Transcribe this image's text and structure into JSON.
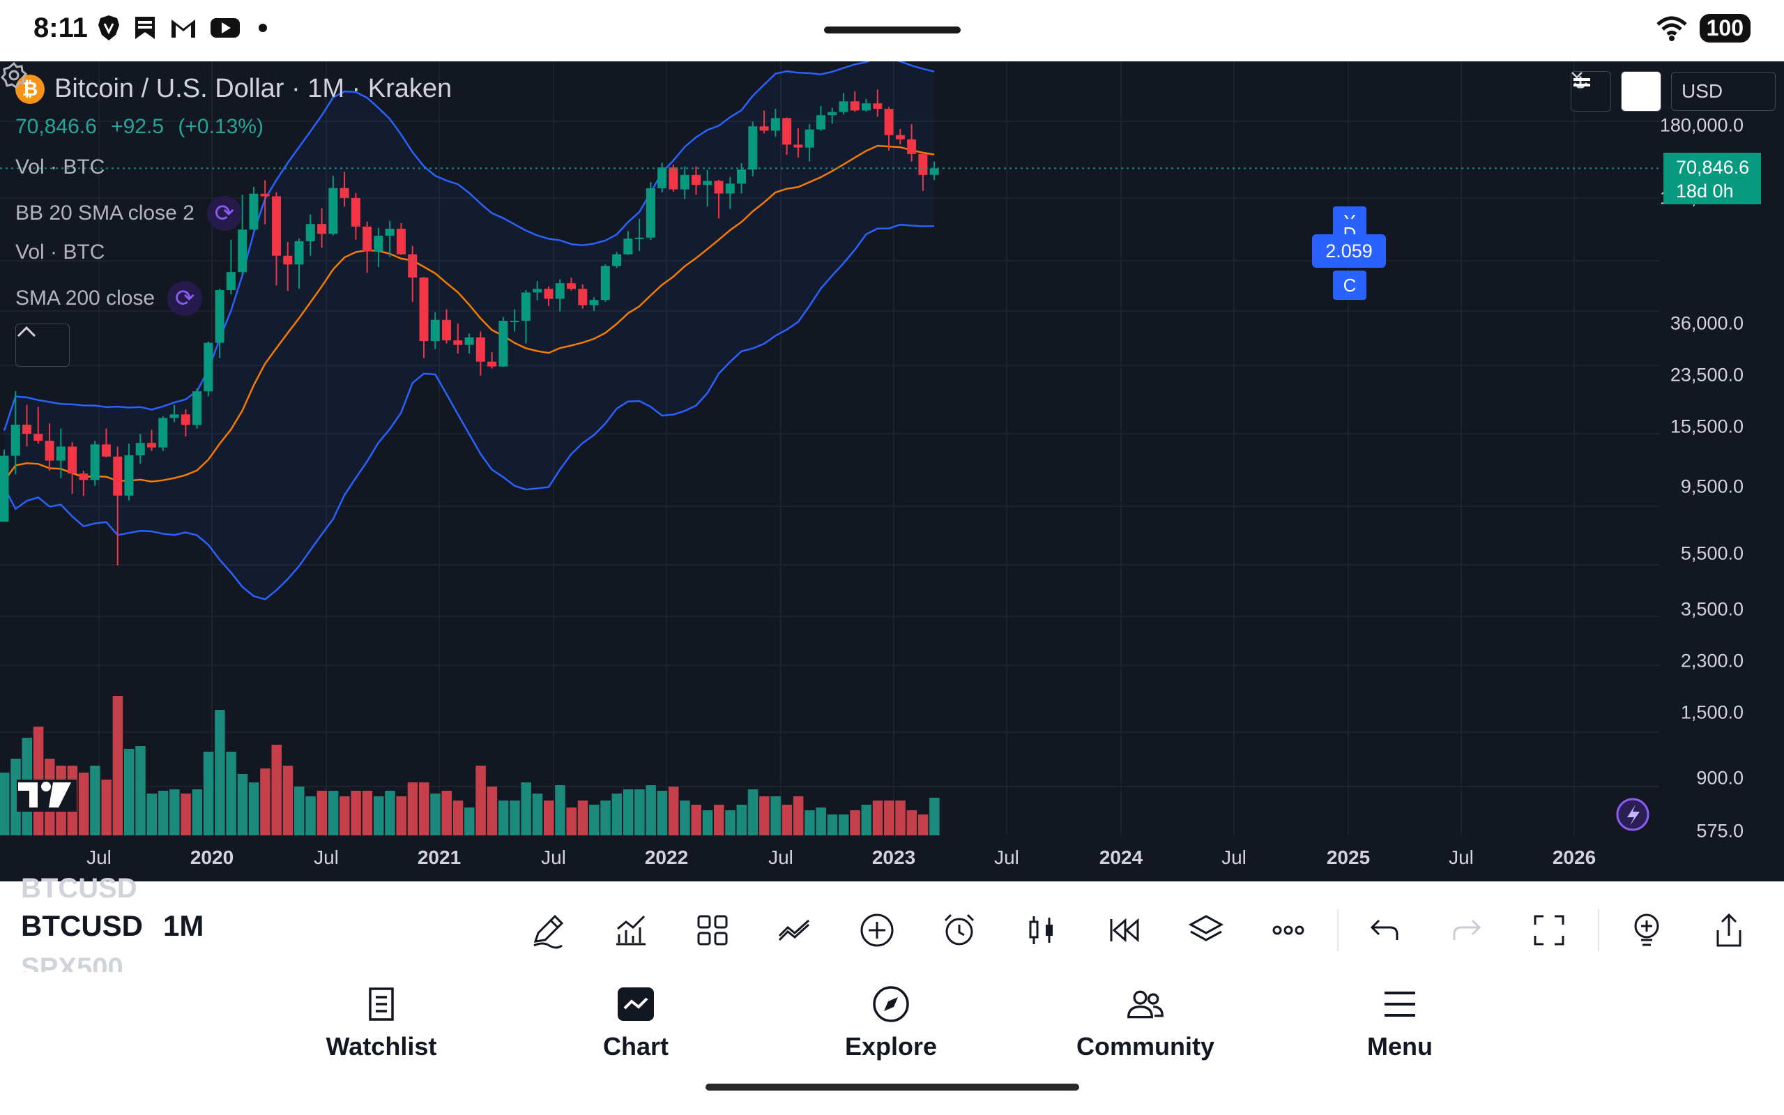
{
  "status_bar": {
    "time": "8:11",
    "battery": "100",
    "icons": [
      "brave-icon",
      "bookmark-icon",
      "gmail-icon",
      "youtube-icon",
      "dot-icon",
      "wifi-icon",
      "battery-icon"
    ]
  },
  "chart_header": {
    "title": "Bitcoin / U.S. Dollar · 1M · Kraken",
    "price": "70,846.6",
    "change": "+92.5",
    "change_pct": "(+0.13%)",
    "indicators": [
      {
        "label": "Vol · BTC"
      },
      {
        "label": "BB 20 SMA close 2"
      },
      {
        "label": "Vol · BTC"
      },
      {
        "label": "SMA 200 close"
      }
    ]
  },
  "controls": {
    "currency": "USD"
  },
  "y_axis_labels": [
    "180,000.0",
    "100,000.0",
    "36,000.0",
    "23,500.0",
    "15,500.0",
    "9,500.0",
    "5,500.0",
    "3,500.0",
    "2,300.0",
    "1,500.0",
    "900.0",
    "575.0"
  ],
  "price_tag": {
    "price": "70,846.6",
    "countdown": "18d 0h"
  },
  "x_axis_labels": [
    {
      "label": "Jul",
      "year": false
    },
    {
      "label": "2020",
      "year": true
    },
    {
      "label": "Jul",
      "year": false
    },
    {
      "label": "2021",
      "year": true
    },
    {
      "label": "Jul",
      "year": false
    },
    {
      "label": "2022",
      "year": true
    },
    {
      "label": "Jul",
      "year": false
    },
    {
      "label": "2023",
      "year": true
    },
    {
      "label": "Jul",
      "year": false
    },
    {
      "label": "2024",
      "year": true
    },
    {
      "label": "Jul",
      "year": false
    },
    {
      "label": "2025",
      "year": true
    },
    {
      "label": "Jul",
      "year": false
    },
    {
      "label": "2026",
      "year": true
    }
  ],
  "ycd_marker": {
    "value": "2.059",
    "top": "Y",
    "mid": "D",
    "bottom": "C"
  },
  "chart_data": {
    "type": "candlestick",
    "symbol": "BTCUSD",
    "interval": "1M",
    "scale": "log",
    "ylim": [
      575,
      180000
    ],
    "series": [
      {
        "name": "BB 20 SMA close 2"
      },
      {
        "name": "SMA 200 close"
      },
      {
        "name": "Vol · BTC"
      }
    ],
    "x": [
      "2019-05",
      "2019-06",
      "2019-07",
      "2019-08",
      "2019-09",
      "2019-10",
      "2019-11",
      "2019-12",
      "2020-01",
      "2020-02",
      "2020-03",
      "2020-04",
      "2020-05",
      "2020-06",
      "2020-07",
      "2020-08",
      "2020-09",
      "2020-10",
      "2020-11",
      "2020-12",
      "2021-01",
      "2021-02",
      "2021-03",
      "2021-04",
      "2021-05",
      "2021-06",
      "2021-07",
      "2021-08",
      "2021-09",
      "2021-10",
      "2021-11",
      "2021-12",
      "2022-01",
      "2022-02",
      "2022-03",
      "2022-04",
      "2022-05",
      "2022-06",
      "2022-07",
      "2022-08",
      "2022-09",
      "2022-10",
      "2022-11",
      "2022-12",
      "2023-01",
      "2023-02",
      "2023-03",
      "2023-04",
      "2023-05",
      "2023-06",
      "2023-07",
      "2023-08",
      "2023-09",
      "2023-10",
      "2023-11",
      "2023-12",
      "2024-01",
      "2024-02",
      "2024-03",
      "2024-04",
      "2024-05",
      "2024-06",
      "2024-07",
      "2024-08",
      "2024-09",
      "2024-10",
      "2024-11",
      "2024-12",
      "2025-01",
      "2025-02",
      "2025-03",
      "2025-04",
      "2025-05",
      "2025-06",
      "2025-07",
      "2025-08",
      "2025-09",
      "2025-10",
      "2025-11",
      "2025-12",
      "2026-01",
      "2026-02",
      "2026-03"
    ],
    "ohlc": [
      [
        5300,
        9000,
        5300,
        8600
      ],
      [
        8600,
        13800,
        7500,
        10800
      ],
      [
        10800,
        12500,
        9200,
        10100
      ],
      [
        10100,
        12300,
        9400,
        9600
      ],
      [
        9600,
        10900,
        7700,
        8300
      ],
      [
        8300,
        10500,
        7300,
        9200
      ],
      [
        9200,
        9500,
        6500,
        7550
      ],
      [
        7550,
        7700,
        6400,
        7200
      ],
      [
        7200,
        9600,
        6900,
        9350
      ],
      [
        9350,
        10500,
        8500,
        8550
      ],
      [
        8550,
        9200,
        3850,
        6420
      ],
      [
        6420,
        9400,
        6200,
        8630
      ],
      [
        8630,
        10100,
        8100,
        9450
      ],
      [
        9450,
        10400,
        8900,
        9140
      ],
      [
        9140,
        11500,
        8900,
        11350
      ],
      [
        11350,
        12500,
        11000,
        11650
      ],
      [
        11650,
        12100,
        9900,
        10780
      ],
      [
        10780,
        14100,
        10500,
        13800
      ],
      [
        13800,
        19900,
        13300,
        19700
      ],
      [
        19700,
        29300,
        17600,
        28990
      ],
      [
        28990,
        42000,
        28100,
        33100
      ],
      [
        33100,
        58350,
        32300,
        45200
      ],
      [
        45200,
        61800,
        44950,
        58800
      ],
      [
        58800,
        64900,
        47000,
        57700
      ],
      [
        57700,
        59500,
        30000,
        37300
      ],
      [
        37300,
        41300,
        28800,
        35000
      ],
      [
        35000,
        42400,
        29300,
        41500
      ],
      [
        41500,
        50500,
        37300,
        47100
      ],
      [
        47100,
        52900,
        39600,
        43800
      ],
      [
        43800,
        67000,
        43300,
        61300
      ],
      [
        61300,
        69000,
        53500,
        57000
      ],
      [
        57000,
        59100,
        42000,
        46200
      ],
      [
        46200,
        47900,
        32900,
        38500
      ],
      [
        38500,
        45800,
        34300,
        43200
      ],
      [
        43200,
        48200,
        37000,
        45500
      ],
      [
        45500,
        47400,
        37600,
        37700
      ],
      [
        37700,
        40100,
        26600,
        31800
      ],
      [
        31800,
        31900,
        17600,
        19950
      ],
      [
        19950,
        24600,
        18800,
        23300
      ],
      [
        23300,
        25200,
        19600,
        20050
      ],
      [
        20050,
        22700,
        18200,
        19400
      ],
      [
        19400,
        21100,
        18200,
        20500
      ],
      [
        20500,
        21400,
        15500,
        17150
      ],
      [
        17150,
        18400,
        16300,
        16550
      ],
      [
        16550,
        23800,
        16500,
        23150
      ],
      [
        23150,
        25200,
        21400,
        23150
      ],
      [
        23150,
        29000,
        19600,
        28500
      ],
      [
        28500,
        31000,
        26900,
        29250
      ],
      [
        29250,
        29800,
        25800,
        27200
      ],
      [
        27200,
        31400,
        24800,
        30500
      ],
      [
        30500,
        31800,
        28900,
        29250
      ],
      [
        29250,
        30200,
        25300,
        25950
      ],
      [
        25950,
        27500,
        24900,
        26970
      ],
      [
        26970,
        35000,
        26600,
        34600
      ],
      [
        34600,
        38400,
        34100,
        37700
      ],
      [
        37700,
        44700,
        37600,
        42300
      ],
      [
        42300,
        48900,
        38600,
        42600
      ],
      [
        42600,
        64000,
        41900,
        61200
      ],
      [
        61200,
        73800,
        59300,
        71300
      ],
      [
        71300,
        72800,
        59600,
        60700
      ],
      [
        60700,
        71900,
        56500,
        67500
      ],
      [
        67500,
        71900,
        58400,
        62700
      ],
      [
        62700,
        70000,
        53500,
        64600
      ],
      [
        64600,
        65100,
        49000,
        58900
      ],
      [
        58900,
        66500,
        52600,
        63300
      ],
      [
        63300,
        73600,
        58900,
        70200
      ],
      [
        70200,
        99800,
        66800,
        96400
      ],
      [
        96400,
        108300,
        91500,
        93400
      ],
      [
        93400,
        109600,
        89200,
        102400
      ],
      [
        102400,
        102800,
        78200,
        84300
      ],
      [
        84300,
        95000,
        76600,
        82500
      ],
      [
        82500,
        97900,
        74500,
        94200
      ],
      [
        94200,
        111900,
        93300,
        104600
      ],
      [
        104600,
        110600,
        98200,
        107100
      ],
      [
        107100,
        123200,
        105100,
        115800
      ],
      [
        115800,
        124500,
        107300,
        108300
      ],
      [
        108300,
        117900,
        107300,
        114100
      ],
      [
        114100,
        126200,
        103500,
        109600
      ],
      [
        109600,
        111200,
        80600,
        90400
      ],
      [
        90400,
        94600,
        84400,
        87600
      ],
      [
        87600,
        97900,
        74500,
        78700
      ],
      [
        78700,
        79500,
        60000,
        67500
      ],
      [
        67500,
        74500,
        65000,
        70846.6
      ]
    ],
    "volume_direction": [
      "up",
      "up",
      "up",
      "down",
      "down",
      "down",
      "down",
      "down",
      "up",
      "down",
      "down",
      "up",
      "up",
      "up",
      "up",
      "up",
      "down",
      "up",
      "up",
      "up",
      "up",
      "up",
      "up",
      "down",
      "down",
      "down",
      "up",
      "up",
      "down",
      "up",
      "down",
      "down",
      "down",
      "up",
      "up",
      "down",
      "down",
      "down",
      "up",
      "down",
      "down",
      "up",
      "down",
      "down",
      "up",
      "up",
      "up",
      "up",
      "down",
      "up",
      "down",
      "down",
      "up",
      "up",
      "up",
      "up",
      "up",
      "up",
      "up",
      "down",
      "up",
      "down",
      "up",
      "down",
      "up",
      "up",
      "up",
      "down",
      "up",
      "down",
      "down",
      "up",
      "up",
      "up",
      "up",
      "down",
      "up",
      "down",
      "down",
      "down",
      "down",
      "down",
      "up"
    ],
    "volume_relative": [
      0.45,
      0.55,
      0.7,
      0.78,
      0.55,
      0.5,
      0.5,
      0.45,
      0.5,
      0.4,
      1.0,
      0.62,
      0.64,
      0.3,
      0.32,
      0.33,
      0.3,
      0.33,
      0.6,
      0.9,
      0.6,
      0.44,
      0.38,
      0.48,
      0.65,
      0.5,
      0.35,
      0.28,
      0.32,
      0.32,
      0.28,
      0.32,
      0.32,
      0.28,
      0.32,
      0.28,
      0.38,
      0.38,
      0.3,
      0.32,
      0.25,
      0.2,
      0.5,
      0.35,
      0.25,
      0.25,
      0.38,
      0.3,
      0.25,
      0.36,
      0.2,
      0.25,
      0.22,
      0.25,
      0.3,
      0.33,
      0.33,
      0.36,
      0.32,
      0.35,
      0.25,
      0.22,
      0.18,
      0.22,
      0.18,
      0.22,
      0.33,
      0.28,
      0.28,
      0.22,
      0.28,
      0.18,
      0.2,
      0.15,
      0.15,
      0.18,
      0.22,
      0.25,
      0.25,
      0.25,
      0.18,
      0.15,
      0.27
    ]
  },
  "toolbar": {
    "symbol_prev": "BTCUSD",
    "symbol_current": "BTCUSD",
    "symbol_next": "SPX500",
    "interval": "1M",
    "icons": [
      "drawing-tool-icon",
      "indicators-icon",
      "layout-icon",
      "compare-icon",
      "add-icon",
      "alert-icon",
      "chart-type-icon",
      "replay-icon",
      "layers-icon",
      "more-icon",
      "undo-icon",
      "redo-icon",
      "fullscreen-icon",
      "ideas-icon",
      "share-icon"
    ]
  },
  "nav": {
    "items": [
      {
        "label": "Watchlist"
      },
      {
        "label": "Chart"
      },
      {
        "label": "Explore"
      },
      {
        "label": "Community"
      },
      {
        "label": "Menu"
      }
    ]
  }
}
